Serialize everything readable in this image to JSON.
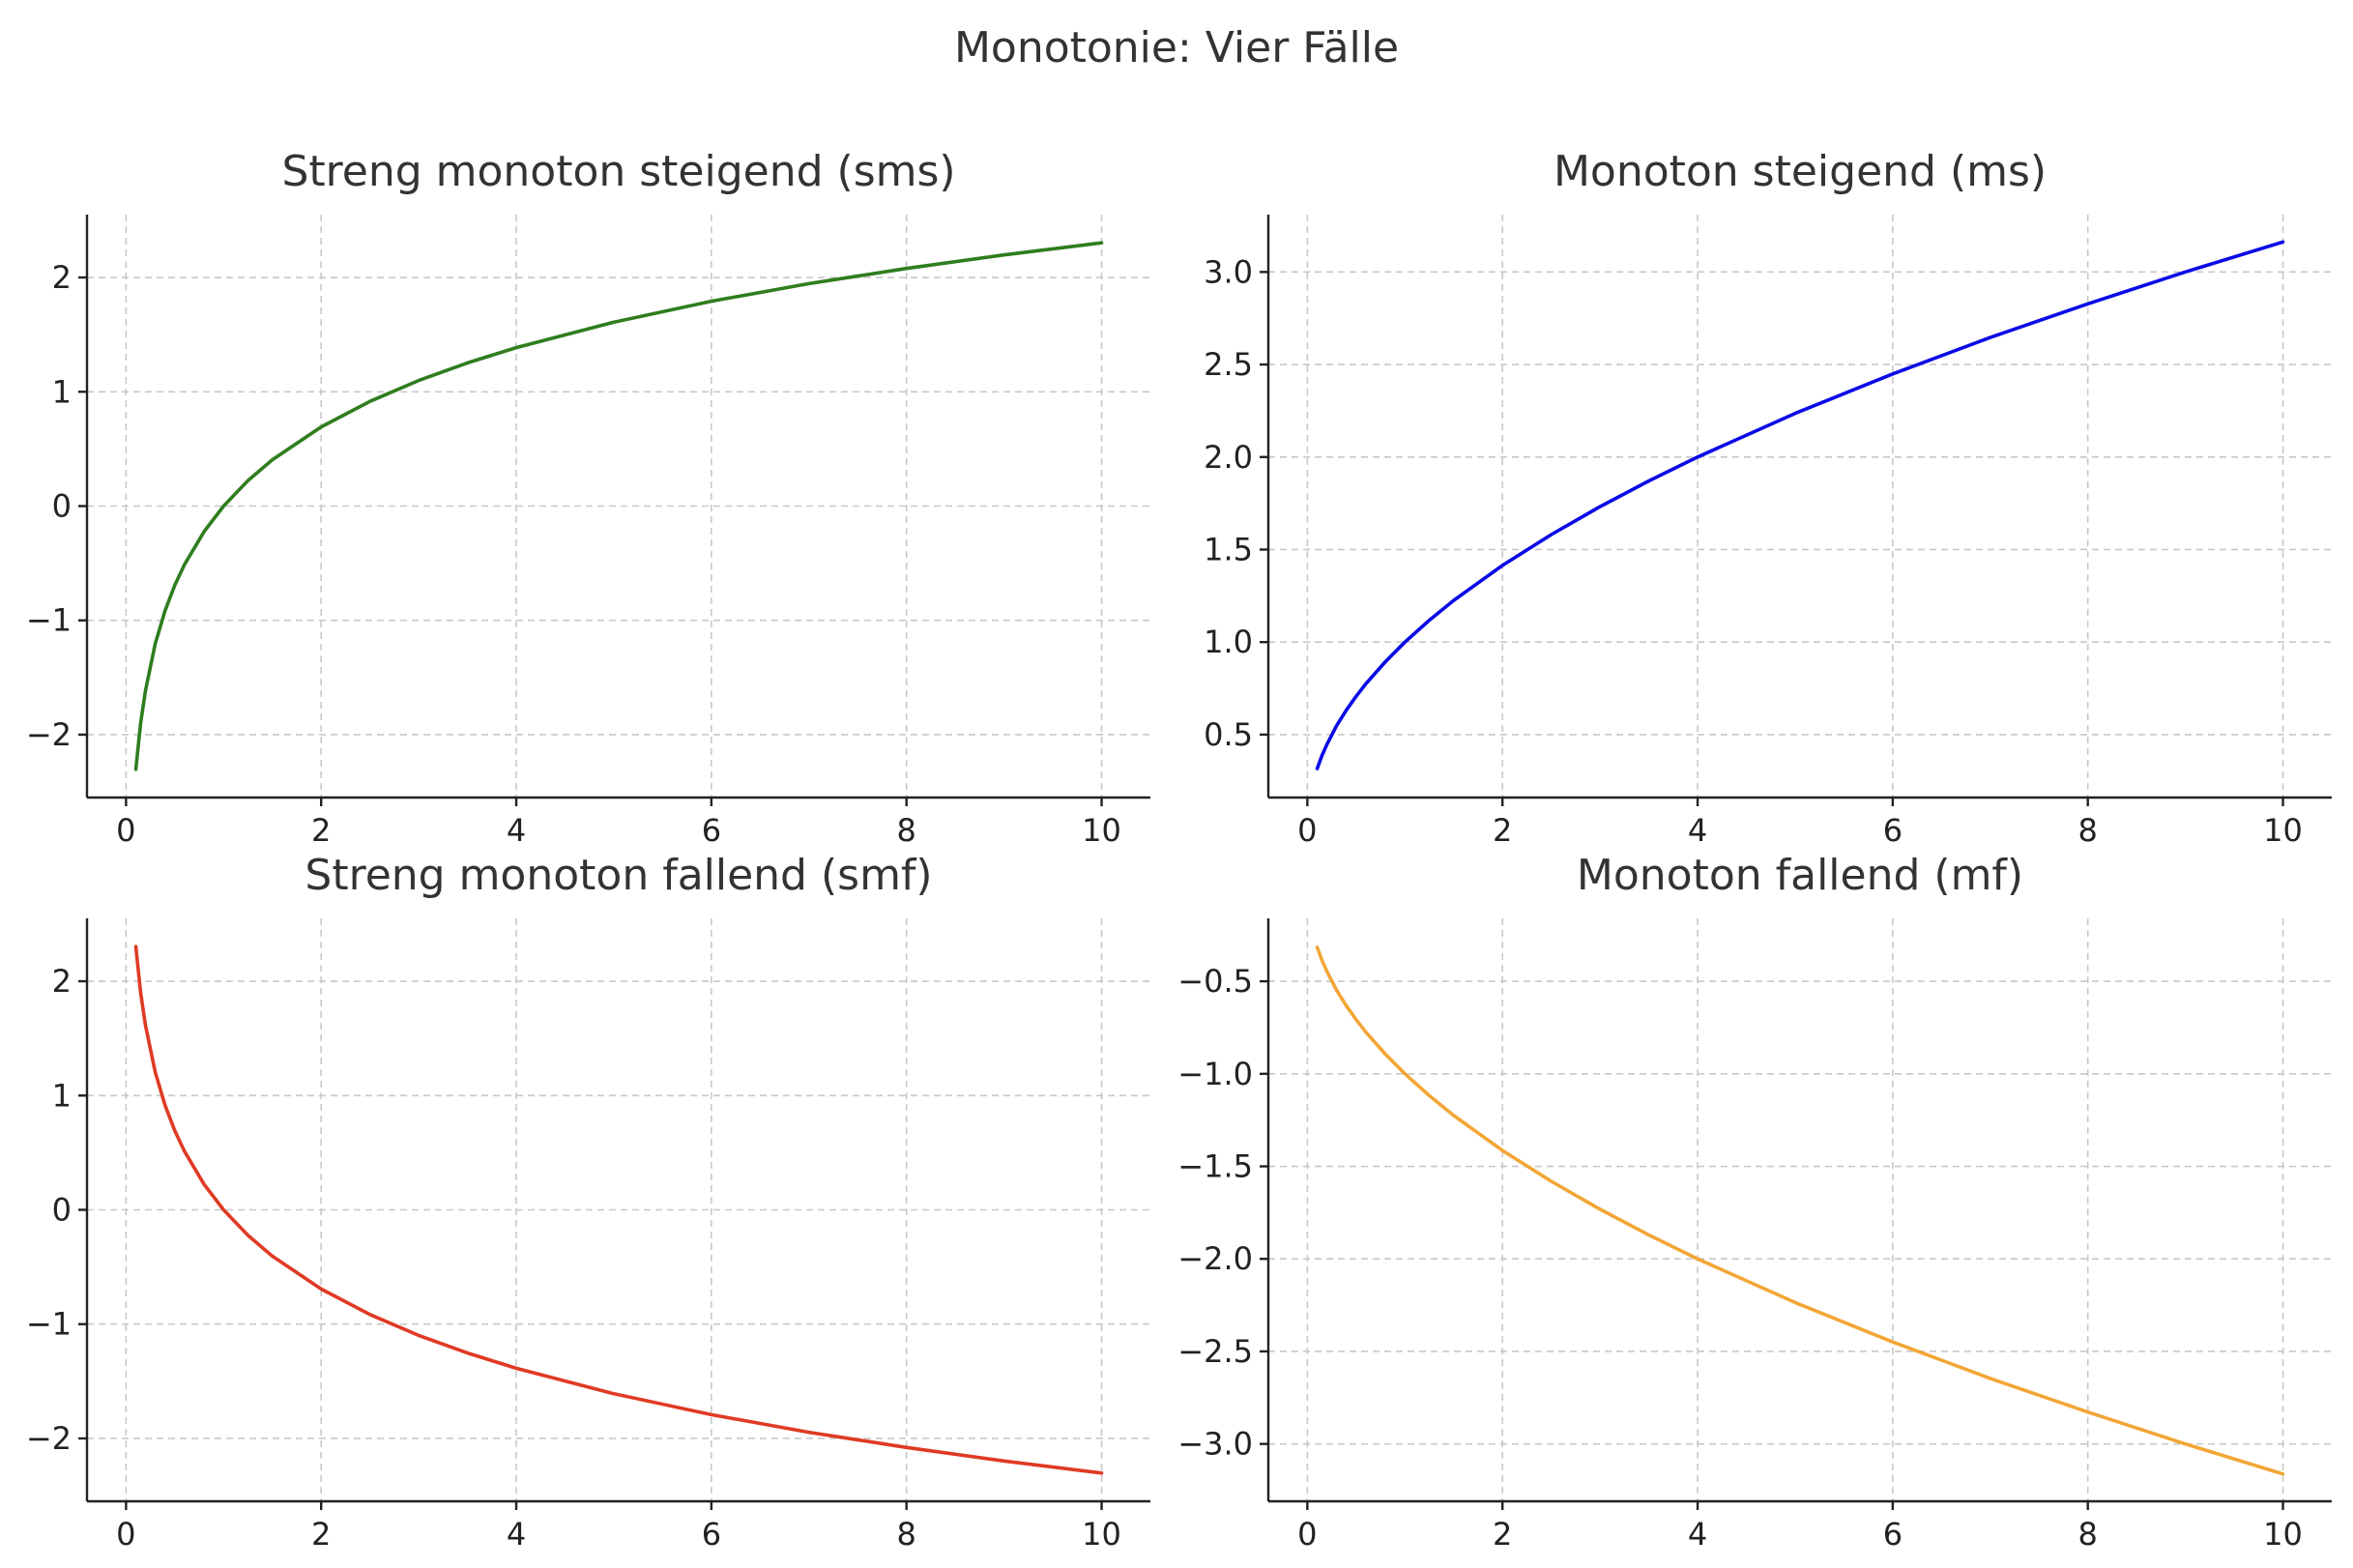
{
  "figure_title": "Monotonie: Vier Fälle",
  "chart_data": [
    {
      "type": "line",
      "title": "Streng monoton steigend (sms)",
      "xlabel": "",
      "ylabel": "",
      "xlim": [
        -0.4,
        10.5
      ],
      "ylim": [
        -2.55,
        2.55
      ],
      "xticks": [
        0,
        2,
        4,
        6,
        8,
        10
      ],
      "xtick_labels": [
        "0",
        "2",
        "4",
        "6",
        "8",
        "10"
      ],
      "yticks": [
        -2,
        -1,
        0,
        1,
        2
      ],
      "ytick_labels": [
        "−2",
        "−1",
        "0",
        "1",
        "2"
      ],
      "grid": true,
      "color": "#2f7d1e",
      "series": [
        {
          "x": [
            0.1,
            0.15,
            0.2,
            0.3,
            0.4,
            0.5,
            0.6,
            0.8,
            1,
            1.25,
            1.5,
            2,
            2.5,
            3,
            3.5,
            4,
            5,
            6,
            7,
            8,
            9,
            10
          ],
          "y": [
            -2.303,
            -1.897,
            -1.609,
            -1.204,
            -0.916,
            -0.693,
            -0.511,
            -0.223,
            0,
            0.223,
            0.405,
            0.693,
            0.916,
            1.099,
            1.253,
            1.386,
            1.609,
            1.792,
            1.946,
            2.079,
            2.197,
            2.303
          ]
        }
      ]
    },
    {
      "type": "line",
      "title": "Monoton steigend (ms)",
      "xlabel": "",
      "ylabel": "",
      "xlim": [
        -0.4,
        10.5
      ],
      "ylim": [
        0.16,
        3.31
      ],
      "xticks": [
        0,
        2,
        4,
        6,
        8,
        10
      ],
      "xtick_labels": [
        "0",
        "2",
        "4",
        "6",
        "8",
        "10"
      ],
      "yticks": [
        0.5,
        1.0,
        1.5,
        2.0,
        2.5,
        3.0
      ],
      "ytick_labels": [
        "0.5",
        "1.0",
        "1.5",
        "2.0",
        "2.5",
        "3.0"
      ],
      "grid": true,
      "color": "#0a0ae6",
      "series": [
        {
          "x": [
            0.1,
            0.15,
            0.2,
            0.3,
            0.4,
            0.5,
            0.6,
            0.8,
            1,
            1.25,
            1.5,
            2,
            2.5,
            3,
            3.5,
            4,
            5,
            6,
            7,
            8,
            9,
            10
          ],
          "y": [
            0.316,
            0.387,
            0.447,
            0.548,
            0.632,
            0.707,
            0.775,
            0.894,
            1.0,
            1.118,
            1.225,
            1.414,
            1.581,
            1.732,
            1.871,
            2.0,
            2.236,
            2.449,
            2.646,
            2.828,
            3.0,
            3.162
          ]
        }
      ]
    },
    {
      "type": "line",
      "title": "Streng monoton fallend (smf)",
      "xlabel": "",
      "ylabel": "",
      "xlim": [
        -0.4,
        10.5
      ],
      "ylim": [
        -2.55,
        2.55
      ],
      "xticks": [
        0,
        2,
        4,
        6,
        8,
        10
      ],
      "xtick_labels": [
        "0",
        "2",
        "4",
        "6",
        "8",
        "10"
      ],
      "yticks": [
        -2,
        -1,
        0,
        1,
        2
      ],
      "ytick_labels": [
        "−2",
        "−1",
        "0",
        "1",
        "2"
      ],
      "grid": true,
      "color": "#e03a24",
      "series": [
        {
          "x": [
            0.1,
            0.15,
            0.2,
            0.3,
            0.4,
            0.5,
            0.6,
            0.8,
            1,
            1.25,
            1.5,
            2,
            2.5,
            3,
            3.5,
            4,
            5,
            6,
            7,
            8,
            9,
            10
          ],
          "y": [
            2.303,
            1.897,
            1.609,
            1.204,
            0.916,
            0.693,
            0.511,
            0.223,
            0,
            -0.223,
            -0.405,
            -0.693,
            -0.916,
            -1.099,
            -1.253,
            -1.386,
            -1.609,
            -1.792,
            -1.946,
            -2.079,
            -2.197,
            -2.303
          ]
        }
      ]
    },
    {
      "type": "line",
      "title": "Monoton fallend (mf)",
      "xlabel": "",
      "ylabel": "",
      "xlim": [
        -0.4,
        10.5
      ],
      "ylim": [
        -3.31,
        -0.16
      ],
      "xticks": [
        0,
        2,
        4,
        6,
        8,
        10
      ],
      "xtick_labels": [
        "0",
        "2",
        "4",
        "6",
        "8",
        "10"
      ],
      "yticks": [
        -0.5,
        -1.0,
        -1.5,
        -2.0,
        -2.5,
        -3.0
      ],
      "ytick_labels": [
        "−0.5",
        "−1.0",
        "−1.5",
        "−2.0",
        "−2.5",
        "−3.0"
      ],
      "grid": true,
      "color": "#f2a636",
      "series": [
        {
          "x": [
            0.1,
            0.15,
            0.2,
            0.3,
            0.4,
            0.5,
            0.6,
            0.8,
            1,
            1.25,
            1.5,
            2,
            2.5,
            3,
            3.5,
            4,
            5,
            6,
            7,
            8,
            9,
            10
          ],
          "y": [
            -0.316,
            -0.387,
            -0.447,
            -0.548,
            -0.632,
            -0.707,
            -0.775,
            -0.894,
            -1.0,
            -1.118,
            -1.225,
            -1.414,
            -1.581,
            -1.732,
            -1.871,
            -2.0,
            -2.236,
            -2.449,
            -2.646,
            -2.828,
            -3.0,
            -3.162
          ]
        }
      ]
    }
  ]
}
